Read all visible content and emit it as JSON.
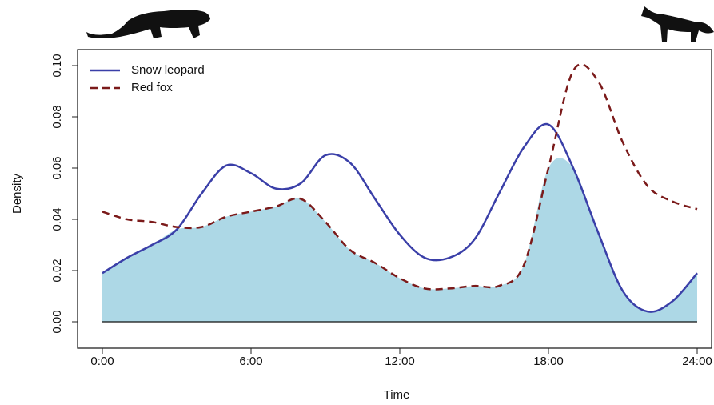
{
  "chart_data": {
    "type": "line",
    "xlabel": "Time",
    "ylabel": "Density",
    "x": [
      0,
      1,
      2,
      3,
      4,
      5,
      6,
      7,
      8,
      9,
      10,
      11,
      12,
      13,
      14,
      15,
      16,
      17,
      18,
      19,
      20,
      21,
      22,
      23,
      24
    ],
    "series": [
      {
        "name": "Snow leopard",
        "color": "#3a3fa8",
        "dash": "solid",
        "values": [
          0.019,
          0.025,
          0.03,
          0.036,
          0.05,
          0.061,
          0.058,
          0.052,
          0.054,
          0.065,
          0.062,
          0.048,
          0.034,
          0.025,
          0.025,
          0.032,
          0.05,
          0.068,
          0.077,
          0.06,
          0.035,
          0.012,
          0.004,
          0.008,
          0.019
        ]
      },
      {
        "name": "Red fox",
        "color": "#7b1a1a",
        "dash": "dashed",
        "values": [
          0.043,
          0.04,
          0.039,
          0.037,
          0.037,
          0.041,
          0.043,
          0.045,
          0.048,
          0.039,
          0.028,
          0.023,
          0.017,
          0.013,
          0.013,
          0.014,
          0.014,
          0.022,
          0.06,
          0.098,
          0.094,
          0.07,
          0.053,
          0.047,
          0.044
        ]
      }
    ],
    "overlap_color": "#add8e6",
    "xlim": [
      0,
      24
    ],
    "xticks": [
      {
        "value": 0,
        "label": "0:00"
      },
      {
        "value": 6,
        "label": "6:00"
      },
      {
        "value": 12,
        "label": "12:00"
      },
      {
        "value": 18,
        "label": "18:00"
      },
      {
        "value": 24,
        "label": "24:00"
      }
    ],
    "ylim": [
      0,
      0.1
    ],
    "yticks": [
      {
        "value": 0,
        "label": "0.00"
      },
      {
        "value": 0.02,
        "label": "0.02"
      },
      {
        "value": 0.04,
        "label": "0.04"
      },
      {
        "value": 0.06,
        "label": "0.06"
      },
      {
        "value": 0.08,
        "label": "0.08"
      },
      {
        "value": 0.1,
        "label": "0.10"
      }
    ],
    "legend": "top-left"
  }
}
